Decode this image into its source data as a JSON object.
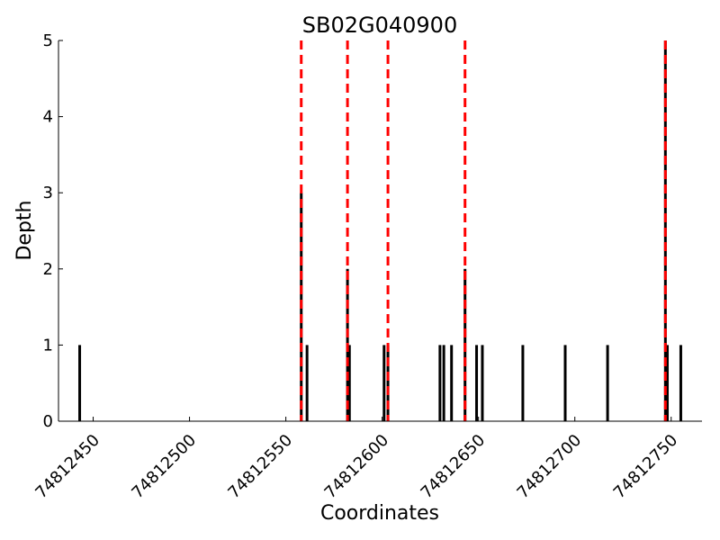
{
  "chart_data": {
    "type": "bar",
    "title": "SB02G040900",
    "xlabel": "Coordinates",
    "ylabel": "Depth",
    "xlim": [
      74812432,
      74812766
    ],
    "ylim": [
      0,
      5
    ],
    "x_ticks": [
      74812450,
      74812500,
      74812550,
      74812600,
      74812650,
      74812700,
      74812750
    ],
    "y_ticks": [
      0,
      1,
      2,
      3,
      4,
      5
    ],
    "grid": false,
    "bar_color": "#000000",
    "series": [
      {
        "x": [
          74812443,
          74812558,
          74812561,
          74812582,
          74812583,
          74812601,
          74812603,
          74812630,
          74812632,
          74812636,
          74812643,
          74812649,
          74812652,
          74812673,
          74812695,
          74812717,
          74812747,
          74812748,
          74812755
        ],
        "values": [
          1,
          3,
          1,
          2,
          1,
          1,
          1,
          1,
          1,
          1,
          2,
          1,
          1,
          1,
          1,
          1,
          5,
          1,
          1
        ]
      }
    ],
    "reference_lines": {
      "color": "#ff0000",
      "style": "dashed",
      "x": [
        74812558,
        74812582,
        74812603,
        74812643,
        74812747
      ]
    }
  }
}
